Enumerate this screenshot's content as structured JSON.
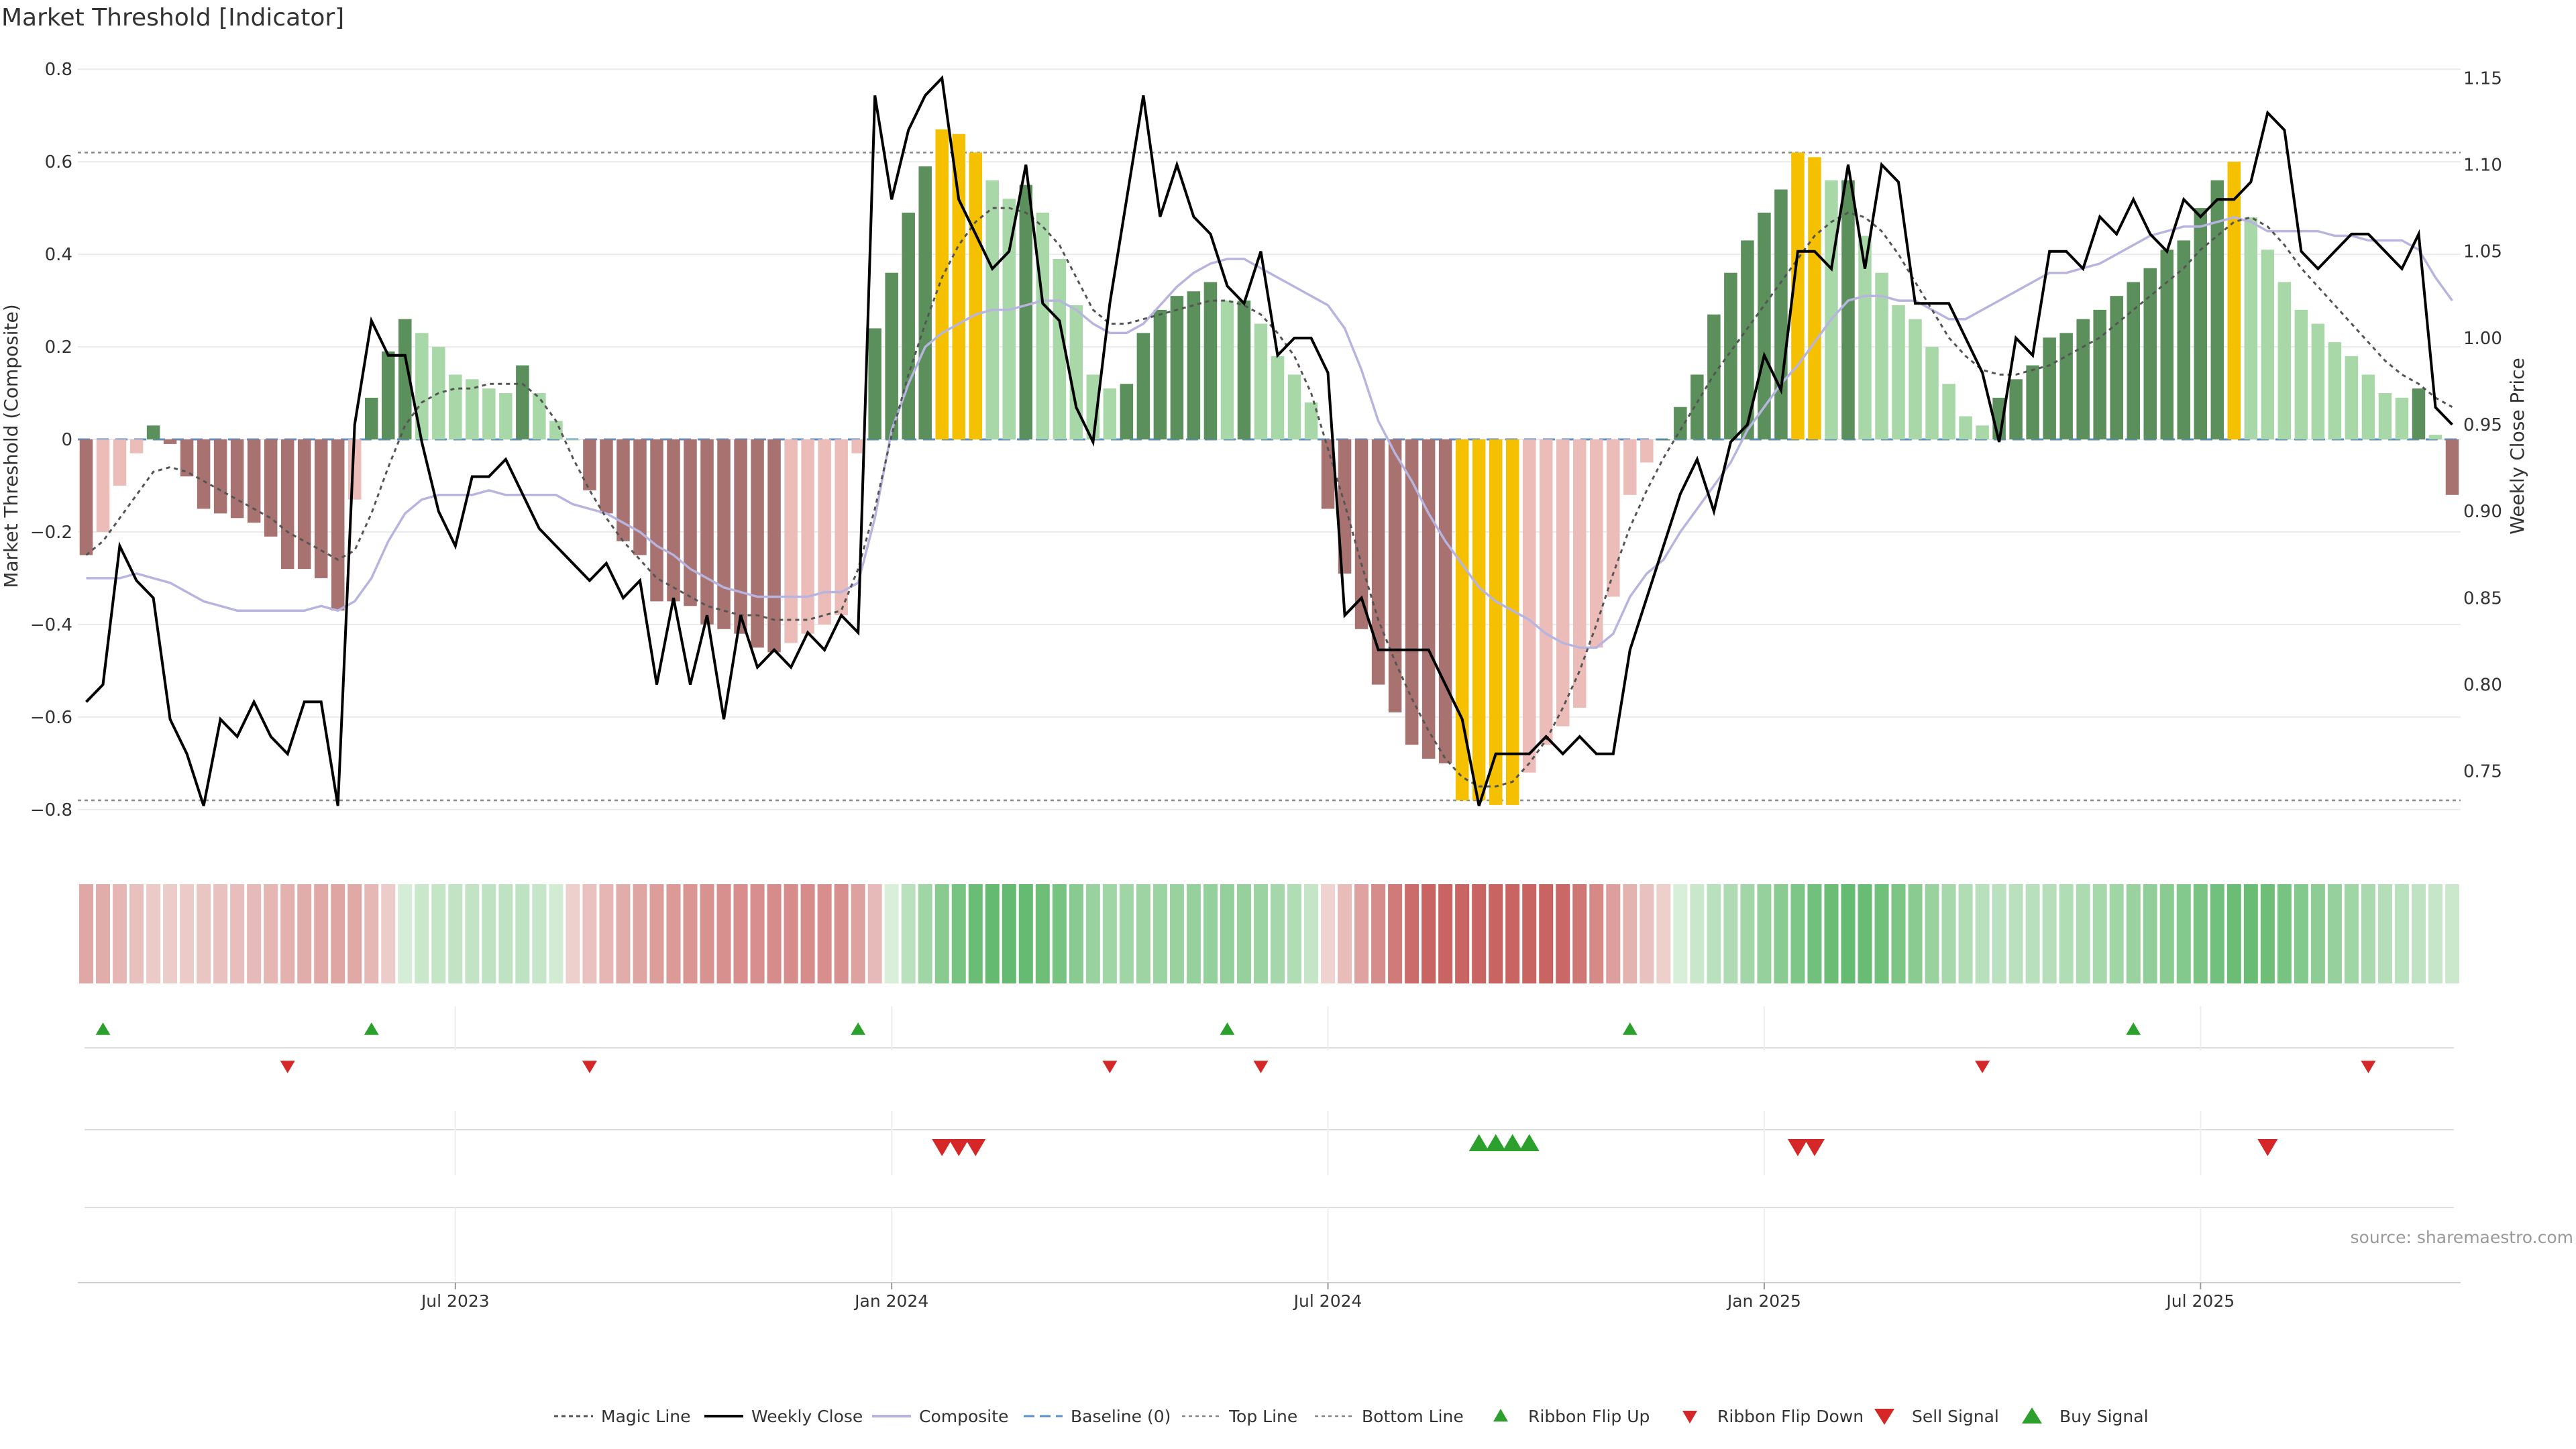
{
  "chart_data": {
    "type": "bar",
    "title": "Market Threshold [Indicator]",
    "ylabel": "Market Threshold (Composite)",
    "y2label": "Weekly Close Price",
    "source": "source: sharemaestro.com",
    "ylim": [
      -0.88,
      0.88
    ],
    "y2lim": [
      0.7065,
      1.1765
    ],
    "yticks": [
      "−0.8",
      "−0.6",
      "−0.4",
      "−0.2",
      "0",
      "0.2",
      "0.4",
      "0.6",
      "0.8"
    ],
    "yticks_values": [
      -0.8,
      -0.6,
      -0.4,
      -0.2,
      0,
      0.2,
      0.4,
      0.6,
      0.8
    ],
    "y2ticks": [
      "0.75",
      "0.80",
      "0.85",
      "0.90",
      "0.95",
      "1.00",
      "1.05",
      "1.10",
      "1.15"
    ],
    "y2ticks_values": [
      0.75,
      0.8,
      0.85,
      0.9,
      0.95,
      1.0,
      1.05,
      1.1,
      1.15
    ],
    "xticks": [
      {
        "label": "Jul 2023",
        "week": 22
      },
      {
        "label": "Jan 2024",
        "week": 48
      },
      {
        "label": "Jul 2024",
        "week": 74
      },
      {
        "label": "Jan 2025",
        "week": 100
      },
      {
        "label": "Jul 2025",
        "week": 126
      }
    ],
    "start_week_offset": 0,
    "top_line": 0.62,
    "bottom_line": -0.78,
    "composite": [
      -0.25,
      -0.2,
      -0.1,
      -0.03,
      0.03,
      -0.01,
      -0.08,
      -0.15,
      -0.16,
      -0.17,
      -0.18,
      -0.21,
      -0.28,
      -0.28,
      -0.3,
      -0.37,
      -0.13,
      0.09,
      0.19,
      0.26,
      0.23,
      0.2,
      0.14,
      0.13,
      0.11,
      0.1,
      0.16,
      0.1,
      0.04,
      0,
      -0.11,
      -0.16,
      -0.22,
      -0.25,
      -0.35,
      -0.35,
      -0.36,
      -0.4,
      -0.41,
      -0.42,
      -0.45,
      -0.46,
      -0.44,
      -0.42,
      -0.4,
      -0.38,
      -0.03,
      0.24,
      0.36,
      0.49,
      0.59,
      0.67,
      0.66,
      0.62,
      0.56,
      0.52,
      0.55,
      0.49,
      0.39,
      0.29,
      0.14,
      0.11,
      0.12,
      0.23,
      0.28,
      0.31,
      0.32,
      0.34,
      0.3,
      0.3,
      0.25,
      0.18,
      0.14,
      0.08,
      -0.15,
      -0.29,
      -0.41,
      -0.53,
      -0.59,
      -0.66,
      -0.69,
      -0.7,
      -0.78,
      -0.78,
      -0.79,
      -0.79,
      -0.72,
      -0.66,
      -0.62,
      -0.58,
      -0.45,
      -0.34,
      -0.12,
      -0.05,
      0,
      0.07,
      0.14,
      0.27,
      0.36,
      0.43,
      0.49,
      0.54,
      0.62,
      0.61,
      0.56,
      0.56,
      0.44,
      0.36,
      0.29,
      0.26,
      0.2,
      0.12,
      0.05,
      0.03,
      0.09,
      0.13,
      0.16,
      0.22,
      0.23,
      0.26,
      0.28,
      0.31,
      0.34,
      0.37,
      0.41,
      0.43,
      0.5,
      0.56,
      0.6,
      0.48,
      0.41,
      0.34,
      0.28,
      0.25,
      0.21,
      0.18,
      0.14,
      0.1,
      0.09,
      0.11,
      0.01,
      -0.12
    ],
    "magic_line": [
      -0.25,
      -0.22,
      -0.17,
      -0.12,
      -0.07,
      -0.06,
      -0.07,
      -0.09,
      -0.11,
      -0.13,
      -0.15,
      -0.17,
      -0.2,
      -0.22,
      -0.24,
      -0.26,
      -0.24,
      -0.16,
      -0.06,
      0.03,
      0.08,
      0.1,
      0.11,
      0.11,
      0.12,
      0.12,
      0.12,
      0.09,
      0.04,
      -0.04,
      -0.11,
      -0.17,
      -0.22,
      -0.26,
      -0.3,
      -0.32,
      -0.34,
      -0.36,
      -0.37,
      -0.38,
      -0.38,
      -0.39,
      -0.39,
      -0.39,
      -0.38,
      -0.37,
      -0.28,
      -0.15,
      0.01,
      0.14,
      0.25,
      0.35,
      0.42,
      0.47,
      0.5,
      0.5,
      0.49,
      0.46,
      0.42,
      0.35,
      0.28,
      0.25,
      0.25,
      0.26,
      0.27,
      0.28,
      0.29,
      0.3,
      0.3,
      0.29,
      0.27,
      0.23,
      0.18,
      0.1,
      -0.02,
      -0.14,
      -0.27,
      -0.39,
      -0.48,
      -0.56,
      -0.63,
      -0.69,
      -0.73,
      -0.75,
      -0.75,
      -0.74,
      -0.7,
      -0.65,
      -0.58,
      -0.5,
      -0.4,
      -0.29,
      -0.19,
      -0.11,
      -0.04,
      0.02,
      0.08,
      0.14,
      0.19,
      0.24,
      0.29,
      0.34,
      0.39,
      0.44,
      0.47,
      0.49,
      0.48,
      0.45,
      0.4,
      0.34,
      0.28,
      0.22,
      0.18,
      0.15,
      0.14,
      0.14,
      0.15,
      0.16,
      0.18,
      0.2,
      0.22,
      0.25,
      0.28,
      0.31,
      0.34,
      0.37,
      0.41,
      0.44,
      0.47,
      0.48,
      0.46,
      0.42,
      0.37,
      0.33,
      0.29,
      0.25,
      0.21,
      0.17,
      0.14,
      0.12,
      0.09,
      0.07
    ],
    "composite_smooth": [
      -0.3,
      -0.3,
      -0.3,
      -0.29,
      -0.3,
      -0.31,
      -0.33,
      -0.35,
      -0.36,
      -0.37,
      -0.37,
      -0.37,
      -0.37,
      -0.37,
      -0.36,
      -0.37,
      -0.35,
      -0.3,
      -0.22,
      -0.16,
      -0.13,
      -0.12,
      -0.12,
      -0.12,
      -0.11,
      -0.12,
      -0.12,
      -0.12,
      -0.12,
      -0.14,
      -0.15,
      -0.16,
      -0.18,
      -0.2,
      -0.23,
      -0.25,
      -0.28,
      -0.3,
      -0.32,
      -0.33,
      -0.34,
      -0.34,
      -0.34,
      -0.34,
      -0.33,
      -0.33,
      -0.31,
      -0.17,
      0.02,
      0.12,
      0.2,
      0.23,
      0.25,
      0.27,
      0.28,
      0.28,
      0.29,
      0.3,
      0.3,
      0.28,
      0.25,
      0.23,
      0.23,
      0.25,
      0.29,
      0.33,
      0.36,
      0.38,
      0.39,
      0.39,
      0.37,
      0.35,
      0.33,
      0.31,
      0.29,
      0.24,
      0.15,
      0.04,
      -0.03,
      -0.09,
      -0.16,
      -0.22,
      -0.27,
      -0.32,
      -0.35,
      -0.37,
      -0.39,
      -0.42,
      -0.44,
      -0.45,
      -0.45,
      -0.42,
      -0.34,
      -0.29,
      -0.26,
      -0.2,
      -0.15,
      -0.1,
      -0.05,
      0.02,
      0.07,
      0.12,
      0.16,
      0.21,
      0.26,
      0.3,
      0.31,
      0.31,
      0.3,
      0.3,
      0.28,
      0.26,
      0.26,
      0.28,
      0.3,
      0.32,
      0.34,
      0.36,
      0.36,
      0.37,
      0.38,
      0.4,
      0.42,
      0.44,
      0.45,
      0.46,
      0.46,
      0.47,
      0.48,
      0.47,
      0.45,
      0.45,
      0.45,
      0.45,
      0.44,
      0.44,
      0.43,
      0.43,
      0.43,
      0.41,
      0.35,
      0.3
    ],
    "weekly_close": [
      0.79,
      0.8,
      0.88,
      0.86,
      0.85,
      0.78,
      0.76,
      0.73,
      0.78,
      0.77,
      0.79,
      0.77,
      0.76,
      0.79,
      0.79,
      0.73,
      0.95,
      1.01,
      0.99,
      0.99,
      0.94,
      0.9,
      0.88,
      0.92,
      0.92,
      0.93,
      0.91,
      0.89,
      0.88,
      0.87,
      0.86,
      0.87,
      0.85,
      0.86,
      0.8,
      0.85,
      0.8,
      0.84,
      0.78,
      0.84,
      0.81,
      0.82,
      0.81,
      0.83,
      0.82,
      0.84,
      0.83,
      1.14,
      1.08,
      1.12,
      1.14,
      1.15,
      1.08,
      1.06,
      1.04,
      1.05,
      1.1,
      1.02,
      1.01,
      0.96,
      0.94,
      1.02,
      1.08,
      1.14,
      1.07,
      1.1,
      1.07,
      1.06,
      1.03,
      1.02,
      1.05,
      0.99,
      1.0,
      1.0,
      0.98,
      0.84,
      0.85,
      0.82,
      0.82,
      0.82,
      0.82,
      0.8,
      0.78,
      0.73,
      0.76,
      0.76,
      0.76,
      0.77,
      0.76,
      0.77,
      0.76,
      0.76,
      0.82,
      0.85,
      0.88,
      0.91,
      0.93,
      0.9,
      0.94,
      0.95,
      0.99,
      0.97,
      1.05,
      1.05,
      1.04,
      1.1,
      1.04,
      1.1,
      1.09,
      1.02,
      1.02,
      1.02,
      1.0,
      0.98,
      0.94,
      1.0,
      0.99,
      1.05,
      1.05,
      1.04,
      1.07,
      1.06,
      1.08,
      1.06,
      1.05,
      1.08,
      1.07,
      1.08,
      1.08,
      1.09,
      1.13,
      1.12,
      1.05,
      1.04,
      1.05,
      1.06,
      1.06,
      1.05,
      1.04,
      1.06,
      0.96,
      0.95
    ],
    "ribbon_flip_up_weeks": [
      1,
      17,
      46,
      68,
      92,
      122
    ],
    "ribbon_flip_down_weeks": [
      12,
      30,
      61,
      70,
      113,
      136
    ],
    "sell_signal_weeks": [
      51,
      52,
      53,
      102,
      103,
      130
    ],
    "buy_signal_weeks": [
      83,
      84,
      85,
      86
    ]
  },
  "legend": [
    {
      "label": "Magic Line",
      "icon": "dotted-line"
    },
    {
      "label": "Weekly Close",
      "icon": "solid-line"
    },
    {
      "label": "Composite",
      "icon": "lavender-line"
    },
    {
      "label": "Baseline (0)",
      "icon": "dashed-blue-line"
    },
    {
      "label": "Top Line",
      "icon": "dotted-grey-line"
    },
    {
      "label": "Bottom Line",
      "icon": "dotted-grey-line"
    },
    {
      "label": "Ribbon Flip Up",
      "icon": "green-triangle-up"
    },
    {
      "label": "Ribbon Flip Down",
      "icon": "red-triangle-down"
    },
    {
      "label": "Sell Signal",
      "icon": "red-triangle-down-large"
    },
    {
      "label": "Buy Signal",
      "icon": "green-triangle-up-large"
    }
  ],
  "colors": {
    "pos_strong": "#5b8f5b",
    "pos_weak": "#a8d8a8",
    "neg_strong": "#a87270",
    "neg_weak": "#ecbcb8",
    "extreme": "#f5c000",
    "close": "#000000",
    "composite": "#b8b4e0",
    "magic": "#555555",
    "baseline": "#5b8fc8",
    "flip_up": "#2ca02c",
    "flip_down": "#d62728"
  }
}
